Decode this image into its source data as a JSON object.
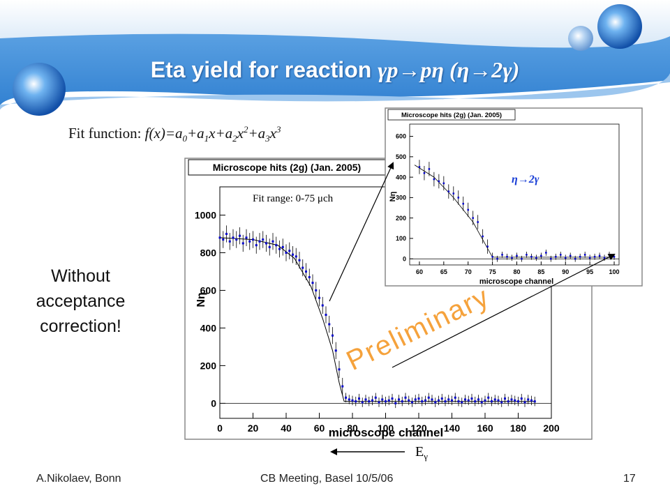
{
  "slide": {
    "title_plain": "Eta yield for reaction ",
    "title_reaction": "γp→pη (η→2γ)",
    "fit_function": {
      "prefix": "Fit function: ",
      "lhs": "f(x)=a",
      "s0": "0",
      "t1": "+a",
      "s1": "1",
      "t2": "x+a",
      "s2": "2",
      "t3": "x",
      "p2": "2",
      "t4": "+a",
      "s3": "3",
      "t5": "x",
      "p3": "3"
    },
    "note_lines": [
      "Without",
      "acceptance",
      "correction!"
    ],
    "preliminary": "Preliminary",
    "energy_label_main": "E",
    "energy_label_sub": "γ",
    "footer": {
      "author": "A.Nikolaev, Bonn",
      "meeting": "CB Meeting, Basel 10/5/06",
      "page": "17"
    }
  },
  "colors": {
    "header_blue": "#2f7fd0",
    "header_light": "#bcd8f2",
    "data_blue": "#0000cc",
    "preliminary_orange": "#f5a23c",
    "annotation_blue": "#1a3fd6"
  },
  "chart_data": [
    {
      "type": "scatter",
      "title": "Microscope hits (2g) (Jan. 2005)",
      "xlabel": "microscope channel",
      "ylabel": "Nη",
      "xlim": [
        0,
        200
      ],
      "ylim": [
        -80,
        1150
      ],
      "xticks": [
        0,
        20,
        40,
        60,
        80,
        100,
        120,
        140,
        160,
        180,
        200
      ],
      "yticks": [
        0,
        200,
        400,
        600,
        800,
        1000
      ],
      "annotation": "Fit range: 0-75 μch",
      "has_fit_line": true,
      "fit_line": [
        [
          0,
          880
        ],
        [
          20,
          870
        ],
        [
          35,
          840
        ],
        [
          45,
          770
        ],
        [
          55,
          620
        ],
        [
          62,
          450
        ],
        [
          68,
          280
        ],
        [
          72,
          110
        ],
        [
          75,
          10
        ],
        [
          190,
          10
        ]
      ],
      "series": [
        {
          "x": [
            0,
            2,
            4,
            6,
            8,
            10,
            12,
            14,
            16,
            18,
            20,
            22,
            24,
            26,
            28,
            30,
            32,
            34,
            36,
            38,
            40,
            42,
            44,
            46,
            48,
            50,
            52,
            54,
            56,
            58,
            60,
            62,
            64,
            66,
            68,
            70,
            72,
            74,
            76,
            78,
            80,
            82,
            84,
            86,
            88,
            90,
            92,
            94,
            96,
            98,
            100,
            102,
            104,
            106,
            108,
            110,
            112,
            114,
            116,
            118,
            120,
            122,
            124,
            126,
            128,
            130,
            132,
            134,
            136,
            138,
            140,
            142,
            144,
            146,
            148,
            150,
            152,
            154,
            156,
            158,
            160,
            162,
            164,
            166,
            168,
            170,
            172,
            174,
            176,
            178,
            180,
            182,
            184,
            186,
            188,
            190
          ],
          "y": [
            880,
            870,
            900,
            860,
            880,
            870,
            890,
            850,
            880,
            860,
            870,
            840,
            860,
            870,
            850,
            830,
            860,
            840,
            820,
            830,
            800,
            810,
            790,
            780,
            760,
            720,
            700,
            670,
            640,
            600,
            560,
            520,
            470,
            420,
            360,
            280,
            180,
            90,
            30,
            20,
            15,
            10,
            25,
            5,
            20,
            10,
            15,
            30,
            5,
            20,
            10,
            15,
            25,
            0,
            20,
            10,
            30,
            15,
            5,
            20,
            25,
            10,
            15,
            30,
            20,
            5,
            15,
            25,
            10,
            20,
            15,
            30,
            10,
            5,
            20,
            15,
            25,
            10,
            20,
            5,
            15,
            30,
            10,
            20,
            15,
            5,
            25,
            10,
            20,
            15,
            10,
            25,
            5,
            20,
            15,
            10
          ],
          "yerr": [
            45,
            45,
            45,
            45,
            45,
            45,
            45,
            45,
            45,
            45,
            45,
            45,
            45,
            45,
            45,
            45,
            45,
            45,
            45,
            45,
            45,
            45,
            45,
            45,
            45,
            45,
            45,
            45,
            45,
            45,
            45,
            45,
            45,
            45,
            45,
            45,
            45,
            45,
            25,
            25,
            25,
            25,
            25,
            25,
            25,
            25,
            25,
            25,
            25,
            25,
            25,
            25,
            25,
            25,
            25,
            25,
            25,
            25,
            25,
            25,
            25,
            25,
            25,
            25,
            25,
            25,
            25,
            25,
            25,
            25,
            25,
            25,
            25,
            25,
            25,
            25,
            25,
            25,
            25,
            25,
            25,
            25,
            25,
            25,
            25,
            25,
            25,
            25,
            25,
            25,
            25,
            25,
            25,
            25,
            25,
            25
          ]
        }
      ]
    },
    {
      "type": "scatter",
      "title": "Microscope hits (2g) (Jan. 2005)",
      "xlabel": "microscope channel",
      "ylabel": "Nη",
      "xlim": [
        58,
        101
      ],
      "ylim": [
        -30,
        660
      ],
      "xticks": [
        60,
        65,
        70,
        75,
        80,
        85,
        90,
        95,
        100
      ],
      "yticks": [
        0,
        100,
        200,
        300,
        400,
        500,
        600
      ],
      "annotation": "η→2γ",
      "has_fit_line": true,
      "fit_line": [
        [
          59,
          460
        ],
        [
          63,
          400
        ],
        [
          67,
          300
        ],
        [
          71,
          180
        ],
        [
          75,
          8
        ],
        [
          100,
          8
        ]
      ],
      "series": [
        {
          "x": [
            60,
            61,
            62,
            63,
            64,
            65,
            66,
            67,
            68,
            69,
            70,
            71,
            72,
            73,
            74,
            75,
            76,
            77,
            78,
            79,
            80,
            81,
            82,
            83,
            84,
            85,
            86,
            87,
            88,
            89,
            90,
            91,
            92,
            93,
            94,
            95,
            96,
            97,
            98,
            99,
            100
          ],
          "y": [
            450,
            420,
            440,
            390,
            380,
            370,
            330,
            320,
            300,
            270,
            240,
            200,
            180,
            110,
            60,
            10,
            0,
            20,
            10,
            5,
            15,
            0,
            20,
            10,
            5,
            15,
            30,
            0,
            10,
            20,
            5,
            15,
            0,
            10,
            20,
            5,
            10,
            15,
            5,
            20,
            10
          ],
          "yerr": [
            35,
            35,
            35,
            35,
            35,
            35,
            35,
            35,
            35,
            35,
            35,
            35,
            35,
            35,
            35,
            20,
            15,
            15,
            15,
            15,
            15,
            15,
            15,
            15,
            15,
            15,
            15,
            15,
            15,
            15,
            15,
            15,
            15,
            15,
            15,
            15,
            15,
            15,
            15,
            15,
            15
          ]
        }
      ]
    }
  ]
}
